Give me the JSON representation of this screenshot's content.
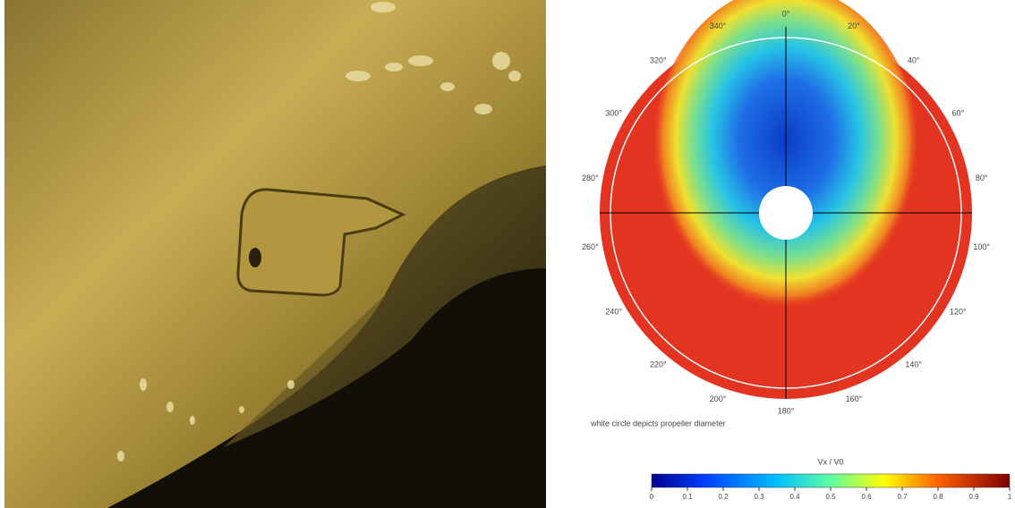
{
  "plot": {
    "angle_labels": [
      "0°",
      "20°",
      "40°",
      "60°",
      "80°",
      "100°",
      "120°",
      "140°",
      "160°",
      "180°",
      "200°",
      "220°",
      "240°",
      "260°",
      "280°",
      "300°",
      "320°",
      "340°"
    ],
    "note": "white circle depicts propeller diameter",
    "colorbar": {
      "label": "Vx / V0",
      "lim": [
        0,
        1
      ],
      "ticks": [
        0,
        0.1,
        0.2,
        0.3,
        0.4,
        0.5,
        0.6,
        0.7,
        0.8,
        0.9,
        1
      ]
    }
  }
}
